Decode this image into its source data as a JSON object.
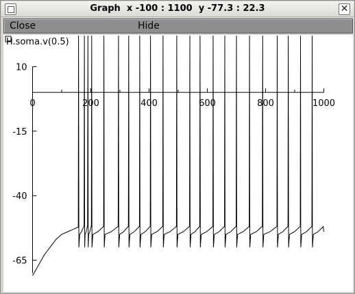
{
  "window": {
    "title": "Graph  x -100 : 1100  y -77.3 : 22.3"
  },
  "menu": {
    "close_label": "Close",
    "hide_label": "Hide"
  },
  "chart_data": {
    "type": "line",
    "title": "",
    "series": [
      {
        "name": "H.soma.v(0.5)",
        "x": [
          0,
          20,
          40,
          60,
          80,
          100,
          120,
          140,
          160
        ],
        "y": [
          -71,
          -67,
          -63,
          -60,
          -57,
          -55,
          -54,
          -53,
          -52
        ]
      }
    ],
    "spike_times": [
      158,
      178,
      190,
      203,
      245,
      295,
      330,
      368,
      405,
      448,
      495,
      540,
      575,
      620,
      660,
      700,
      745,
      790,
      840,
      878,
      920,
      960
    ],
    "spike_peak": 22,
    "trough_level": -53,
    "x_ticks": [
      "0",
      "200",
      "400",
      "600",
      "800",
      "1000"
    ],
    "y_ticks": [
      "10",
      "-15",
      "-40",
      "-65"
    ],
    "xlim": [
      -100,
      1100
    ],
    "ylim": [
      -77.3,
      22.3
    ],
    "xlabel": "",
    "ylabel": ""
  }
}
